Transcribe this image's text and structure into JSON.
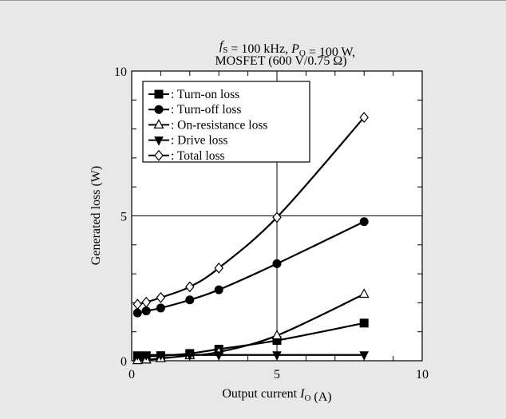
{
  "chart_data": {
    "type": "line",
    "title_line1": "f_S = 100 kHz, P_O = 100 W,",
    "title_line2": "MOSFET (600 V/0.75 Ω)",
    "xlabel": "Output current I_O (A)",
    "ylabel": "Generated loss (W)",
    "xlim": [
      0,
      10
    ],
    "ylim": [
      0,
      10
    ],
    "x_ticks": [
      0,
      5,
      10
    ],
    "y_ticks": [
      0,
      5,
      10
    ],
    "grid": "center lines at x=5 and y=5",
    "legend_position": "top-left",
    "series": [
      {
        "name": ": Turn-on loss",
        "marker": "square-filled",
        "x": [
          0.2,
          0.5,
          1,
          2,
          3,
          5,
          8
        ],
        "y": [
          0.15,
          0.15,
          0.17,
          0.25,
          0.4,
          0.7,
          1.3
        ]
      },
      {
        "name": ": Turn-off loss",
        "marker": "circle-filled",
        "x": [
          0.2,
          0.5,
          1,
          2,
          3,
          5,
          8
        ],
        "y": [
          1.65,
          1.72,
          1.82,
          2.1,
          2.45,
          3.35,
          4.8
        ]
      },
      {
        "name": ": On-resistance loss",
        "marker": "triangle-up-open",
        "x": [
          0.2,
          0.5,
          1,
          2,
          3,
          5,
          8
        ],
        "y": [
          0.01,
          0.03,
          0.08,
          0.18,
          0.3,
          0.87,
          2.3
        ]
      },
      {
        "name": ": Drive loss",
        "marker": "triangle-down-filled",
        "x": [
          0.2,
          0.5,
          1,
          2,
          3,
          5,
          8
        ],
        "y": [
          0.2,
          0.2,
          0.2,
          0.2,
          0.2,
          0.2,
          0.2
        ]
      },
      {
        "name": ": Total loss",
        "marker": "diamond-open",
        "x": [
          0.2,
          0.5,
          1,
          2,
          3,
          5,
          8
        ],
        "y": [
          1.95,
          2.02,
          2.18,
          2.55,
          3.2,
          4.95,
          8.4
        ]
      }
    ]
  }
}
